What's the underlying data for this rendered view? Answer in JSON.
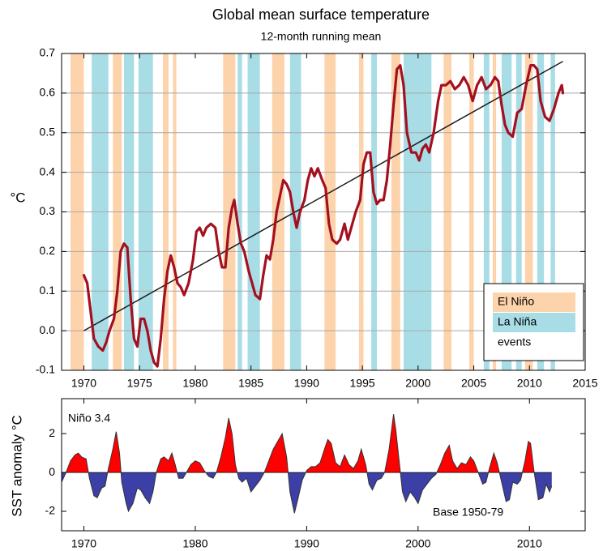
{
  "chart_data": [
    {
      "type": "line",
      "title": "Global mean surface temperature",
      "subtitle": "12-month running mean",
      "ylabel": "°C",
      "xlim": [
        1968,
        2015
      ],
      "ylim": [
        -0.1,
        0.7
      ],
      "xticks": [
        1970,
        1975,
        1980,
        1985,
        1990,
        1995,
        2000,
        2005,
        2010,
        2015
      ],
      "yticks": [
        -0.1,
        {
          "value": 0,
          "label": "0.0"
        },
        0.1,
        0.2,
        0.3,
        0.4,
        0.5,
        0.6,
        0.7
      ],
      "grid": true,
      "legend_position": "lower right",
      "legend_note": "events",
      "events": [
        {
          "name": "El Niño",
          "color": "#fdd3ab",
          "spans": [
            [
              1968.8,
              1970.0
            ],
            [
              1972.6,
              1973.4
            ],
            [
              1977.1,
              1977.6
            ],
            [
              1978.0,
              1978.3
            ],
            [
              1982.5,
              1983.6
            ],
            [
              1986.9,
              1988.0
            ],
            [
              1991.6,
              1992.6
            ],
            [
              1994.7,
              1995.1
            ],
            [
              1997.6,
              1998.4
            ],
            [
              2002.3,
              2003.0
            ],
            [
              2004.6,
              2005.0
            ],
            [
              2006.7,
              2007.0
            ],
            [
              2009.6,
              2010.3
            ]
          ]
        },
        {
          "name": "La Niña",
          "color": "#a8dde6",
          "spans": [
            [
              1970.7,
              1972.2
            ],
            [
              1973.6,
              1974.5
            ],
            [
              1974.9,
              1976.2
            ],
            [
              1983.8,
              1984.2
            ],
            [
              1984.7,
              1985.8
            ],
            [
              1988.5,
              1989.5
            ],
            [
              1995.8,
              1996.3
            ],
            [
              1998.7,
              2001.2
            ],
            [
              2005.9,
              2006.4
            ],
            [
              2007.5,
              2008.4
            ],
            [
              2008.8,
              2009.3
            ],
            [
              2010.7,
              2011.3
            ],
            [
              2011.9,
              2012.3
            ]
          ]
        }
      ],
      "trend": {
        "color": "#1a1a1a",
        "x": [
          1970,
          2013
        ],
        "values": [
          0,
          0.68
        ]
      },
      "series": [
        {
          "color": "#a3101f",
          "x": [
            1970.0,
            1970.3,
            1970.6,
            1970.9,
            1971.3,
            1971.7,
            1972.0,
            1972.3,
            1972.7,
            1973.0,
            1973.3,
            1973.6,
            1973.9,
            1974.2,
            1974.5,
            1974.8,
            1975.1,
            1975.4,
            1975.7,
            1976.0,
            1976.3,
            1976.6,
            1976.9,
            1977.2,
            1977.5,
            1977.8,
            1978.1,
            1978.4,
            1978.7,
            1979.0,
            1979.4,
            1979.8,
            1980.1,
            1980.4,
            1980.7,
            1981.0,
            1981.4,
            1981.8,
            1982.1,
            1982.4,
            1982.7,
            1983.0,
            1983.3,
            1983.5,
            1983.8,
            1984.1,
            1984.4,
            1984.8,
            1985.1,
            1985.4,
            1985.8,
            1986.1,
            1986.4,
            1986.7,
            1987.0,
            1987.3,
            1987.6,
            1987.9,
            1988.2,
            1988.5,
            1988.8,
            1989.1,
            1989.4,
            1989.8,
            1990.1,
            1990.4,
            1990.7,
            1991.0,
            1991.4,
            1991.7,
            1992.0,
            1992.3,
            1992.7,
            1993.0,
            1993.4,
            1993.7,
            1994.0,
            1994.4,
            1994.8,
            1995.1,
            1995.4,
            1995.7,
            1996.0,
            1996.3,
            1996.6,
            1996.9,
            1997.2,
            1997.5,
            1997.8,
            1998.1,
            1998.4,
            1998.7,
            1999.0,
            1999.4,
            1999.8,
            2000.1,
            2000.4,
            2000.7,
            2001.0,
            2001.4,
            2001.8,
            2002.1,
            2002.5,
            2002.9,
            2003.3,
            2003.7,
            2004.1,
            2004.5,
            2004.9,
            2005.3,
            2005.7,
            2006.1,
            2006.5,
            2006.9,
            2007.2,
            2007.5,
            2007.8,
            2008.1,
            2008.5,
            2008.9,
            2009.3,
            2009.7,
            2010.1,
            2010.4,
            2010.7,
            2011.0,
            2011.4,
            2011.8,
            2012.2,
            2012.6,
            2012.9,
            2013.0
          ],
          "values": [
            0.14,
            0.12,
            0.05,
            -0.02,
            -0.04,
            -0.05,
            -0.03,
            0.0,
            0.03,
            0.1,
            0.2,
            0.22,
            0.21,
            0.08,
            -0.02,
            -0.04,
            0.03,
            0.03,
            0.0,
            -0.05,
            -0.08,
            -0.09,
            -0.02,
            0.08,
            0.15,
            0.19,
            0.16,
            0.12,
            0.11,
            0.09,
            0.12,
            0.18,
            0.25,
            0.26,
            0.24,
            0.26,
            0.27,
            0.26,
            0.2,
            0.16,
            0.16,
            0.26,
            0.31,
            0.33,
            0.27,
            0.22,
            0.2,
            0.15,
            0.12,
            0.09,
            0.08,
            0.14,
            0.19,
            0.18,
            0.23,
            0.3,
            0.34,
            0.38,
            0.37,
            0.35,
            0.3,
            0.26,
            0.3,
            0.33,
            0.38,
            0.41,
            0.39,
            0.41,
            0.38,
            0.36,
            0.27,
            0.23,
            0.22,
            0.23,
            0.27,
            0.23,
            0.26,
            0.3,
            0.33,
            0.42,
            0.45,
            0.45,
            0.35,
            0.32,
            0.33,
            0.33,
            0.38,
            0.47,
            0.57,
            0.66,
            0.67,
            0.62,
            0.5,
            0.45,
            0.45,
            0.43,
            0.46,
            0.47,
            0.45,
            0.5,
            0.58,
            0.62,
            0.62,
            0.63,
            0.61,
            0.62,
            0.64,
            0.62,
            0.58,
            0.62,
            0.64,
            0.61,
            0.62,
            0.64,
            0.63,
            0.57,
            0.52,
            0.5,
            0.49,
            0.55,
            0.56,
            0.62,
            0.67,
            0.67,
            0.66,
            0.58,
            0.54,
            0.53,
            0.56,
            0.6,
            0.62,
            0.6
          ]
        }
      ]
    },
    {
      "type": "area",
      "ylabel": "SST anomaly °C",
      "annotations": [
        "Niño 3.4",
        "Base 1950-79"
      ],
      "xlim": [
        1968,
        2015
      ],
      "ylim": [
        -3,
        3.8
      ],
      "xticks": [
        1970,
        1980,
        1990,
        2000,
        2010
      ],
      "yticks": [
        -2,
        0,
        2
      ],
      "pos_color": "#ff0000",
      "neg_color": "#3b3fa6",
      "line_color": "#333333",
      "x": [
        1968.0,
        1968.4,
        1968.8,
        1969.2,
        1969.5,
        1969.8,
        1970.2,
        1970.5,
        1970.9,
        1971.2,
        1971.6,
        1971.9,
        1972.2,
        1972.6,
        1972.9,
        1973.2,
        1973.4,
        1973.8,
        1974.0,
        1974.4,
        1974.8,
        1975.1,
        1975.5,
        1975.9,
        1976.2,
        1976.5,
        1976.9,
        1977.2,
        1977.6,
        1977.9,
        1978.2,
        1978.5,
        1978.9,
        1979.2,
        1979.6,
        1980.0,
        1980.4,
        1980.8,
        1981.2,
        1981.6,
        1981.9,
        1982.3,
        1982.7,
        1983.0,
        1983.3,
        1983.6,
        1983.9,
        1984.2,
        1984.6,
        1985.0,
        1985.4,
        1985.8,
        1986.2,
        1986.6,
        1987.0,
        1987.4,
        1987.8,
        1988.2,
        1988.5,
        1988.9,
        1989.2,
        1989.6,
        1990.0,
        1990.4,
        1990.8,
        1991.2,
        1991.6,
        1991.9,
        1992.2,
        1992.6,
        1993.0,
        1993.4,
        1993.8,
        1994.2,
        1994.6,
        1994.9,
        1995.3,
        1995.6,
        1995.9,
        1996.3,
        1996.7,
        1997.0,
        1997.4,
        1997.8,
        1998.0,
        1998.3,
        1998.6,
        1998.9,
        1999.3,
        1999.7,
        2000.0,
        2000.4,
        2000.8,
        2001.2,
        2001.6,
        2002.0,
        2002.4,
        2002.8,
        2003.1,
        2003.5,
        2003.9,
        2004.3,
        2004.7,
        2005.0,
        2005.4,
        2005.8,
        2006.1,
        2006.4,
        2006.8,
        2007.1,
        2007.5,
        2007.9,
        2008.2,
        2008.5,
        2008.9,
        2009.2,
        2009.6,
        2009.9,
        2010.1,
        2010.4,
        2010.8,
        2011.2,
        2011.5,
        2011.8,
        2012.0
      ],
      "values": [
        -0.5,
        0.0,
        0.6,
        0.9,
        1.0,
        0.8,
        0.7,
        -0.3,
        -1.2,
        -1.3,
        -0.8,
        -0.7,
        0.2,
        1.2,
        2.1,
        1.0,
        -0.5,
        -1.6,
        -2.0,
        -1.6,
        -0.8,
        -0.9,
        -1.3,
        -1.6,
        -1.0,
        0.0,
        0.7,
        0.8,
        0.6,
        1.0,
        0.4,
        -0.3,
        -0.3,
        0.0,
        0.4,
        0.6,
        0.5,
        0.1,
        -0.2,
        -0.3,
        0.0,
        0.8,
        1.8,
        2.8,
        2.0,
        0.4,
        -0.3,
        -0.5,
        -0.3,
        -1.0,
        -0.7,
        -0.4,
        0.0,
        0.6,
        1.2,
        1.6,
        2.0,
        0.8,
        -1.0,
        -2.1,
        -1.4,
        -0.4,
        0.1,
        0.3,
        0.3,
        0.5,
        1.2,
        1.7,
        1.5,
        0.5,
        0.3,
        0.9,
        0.4,
        0.2,
        0.6,
        1.2,
        0.4,
        -0.6,
        -0.9,
        -0.4,
        -0.3,
        0.0,
        1.2,
        3.0,
        2.2,
        0.6,
        -1.0,
        -1.5,
        -1.0,
        -1.3,
        -1.6,
        -0.9,
        -0.6,
        -0.3,
        -0.1,
        0.4,
        1.0,
        1.4,
        0.6,
        0.2,
        0.5,
        0.4,
        0.8,
        0.6,
        0.0,
        -0.6,
        -0.5,
        0.2,
        1.0,
        0.5,
        -0.5,
        -1.5,
        -1.4,
        -0.5,
        -0.6,
        -0.4,
        0.6,
        1.6,
        1.5,
        0.1,
        -1.4,
        -1.3,
        -0.6,
        -1.0,
        -0.7
      ]
    }
  ]
}
